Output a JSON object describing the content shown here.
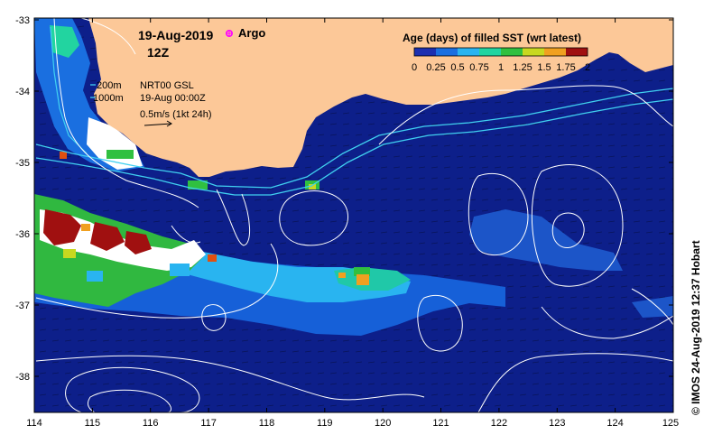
{
  "map": {
    "date_label": "19-Aug-2019",
    "time_label": "12Z",
    "argo_label": "Argo",
    "legend_title": "Age (days) of filled SST (wrt latest)",
    "legend_ticks": [
      "0",
      "0.25",
      "0.5",
      "0.75",
      "1",
      "1.25",
      "1.5",
      "1.75",
      "2"
    ],
    "legend_colors": [
      "#1c2fb0",
      "#1a6fe0",
      "#29b4f0",
      "#22d4a0",
      "#30c040",
      "#c8d820",
      "#f0a020",
      "#e05010",
      "#a01010"
    ],
    "isobath_shallow": "200m",
    "isobath_deep": "1000m",
    "product": "NRT00 GSL",
    "analysis_time": "19-Aug 00:00Z",
    "vector_scale": "0.5m/s (1kt 24h)",
    "x_ticks": [
      "114",
      "115",
      "116",
      "117",
      "118",
      "119",
      "120",
      "121",
      "122",
      "123",
      "124",
      "125"
    ],
    "y_ticks": [
      "-33",
      "-34",
      "-35",
      "-36",
      "-37",
      "-38"
    ],
    "credit": "© IMOS 24-Aug-2019 12:37 Hobart",
    "colors": {
      "ocean": "#0d1f8a",
      "land": "#fcc898",
      "contour": "#ffffff",
      "isobath": "#40d0f0",
      "argo": "#ff00ff"
    }
  }
}
